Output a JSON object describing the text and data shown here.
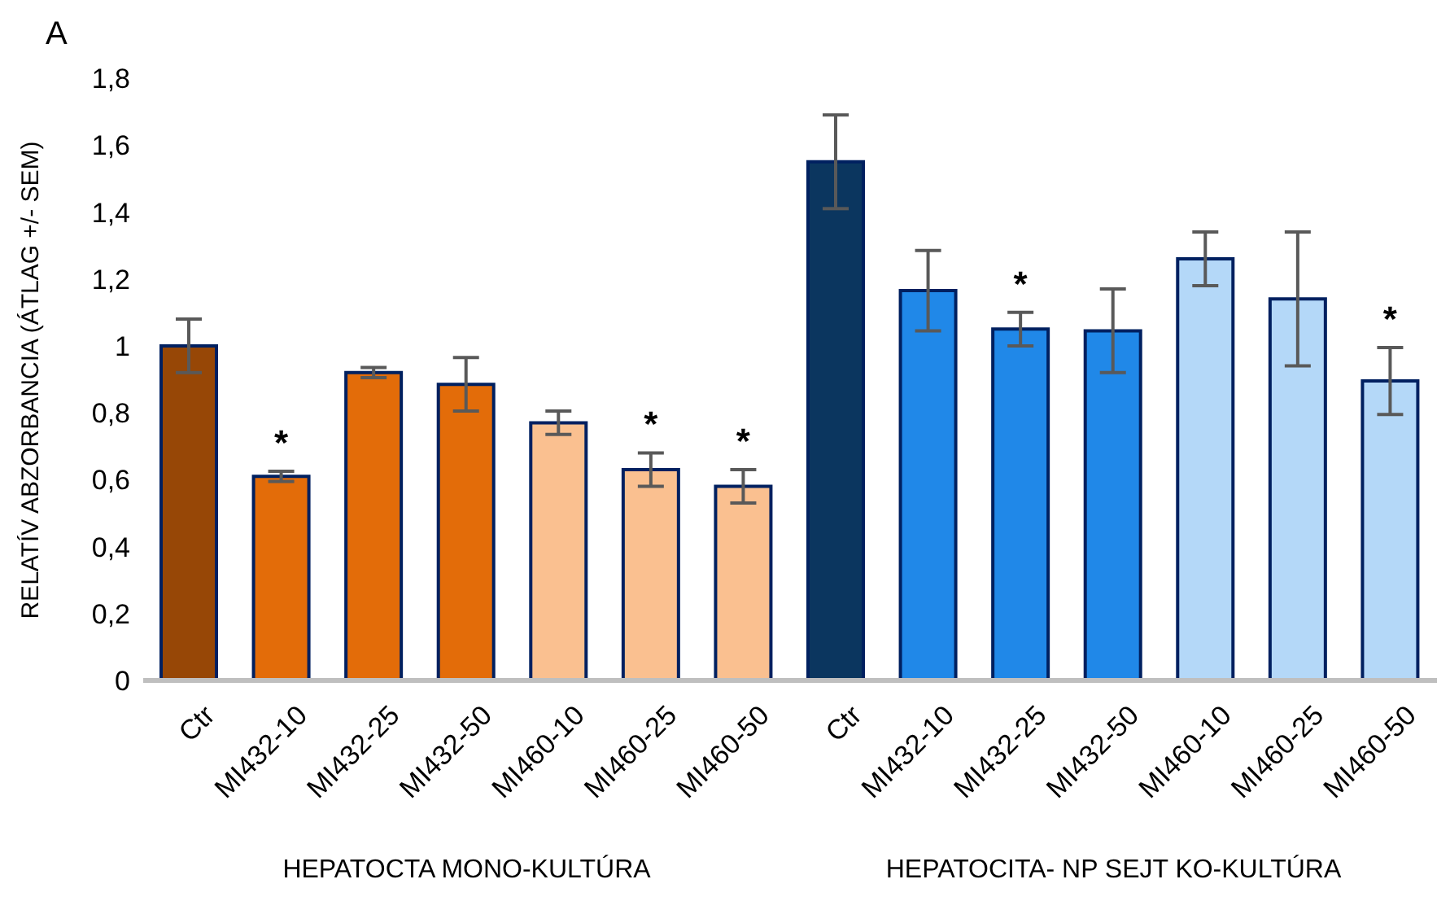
{
  "chart_data": {
    "type": "bar",
    "title": "A",
    "ylabel": "RELATÍV ABZORBANCIA  (ÁTLAG +/- SEM)",
    "categories": [
      "Ctr",
      "MI432-10",
      "MI432-25",
      "MI432-50",
      "MI460-10",
      "MI460-25",
      "MI460-50",
      "Ctr",
      "MI432-10",
      "MI432-25",
      "MI432-50",
      "MI460-10",
      "MI460-25",
      "MI460-50"
    ],
    "values": [
      1.0,
      0.61,
      0.92,
      0.885,
      0.77,
      0.63,
      0.58,
      1.55,
      1.165,
      1.05,
      1.045,
      1.26,
      1.14,
      0.895
    ],
    "errors": [
      0.08,
      0.015,
      0.015,
      0.08,
      0.035,
      0.05,
      0.05,
      0.14,
      0.12,
      0.05,
      0.125,
      0.08,
      0.2,
      0.1
    ],
    "colors": [
      "#974706",
      "#e36c09",
      "#e36c09",
      "#e36c09",
      "#fac090",
      "#fac090",
      "#fac090",
      "#0b365f",
      "#2088e8",
      "#2088e8",
      "#2088e8",
      "#b4d8f8",
      "#b4d8f8",
      "#b4d8f8"
    ],
    "value_labels": [
      null,
      "*",
      null,
      null,
      null,
      "*",
      "*",
      null,
      null,
      "*",
      null,
      null,
      null,
      "*"
    ],
    "ylim": [
      0,
      1.8
    ],
    "yticks": [
      {
        "value": 0,
        "label": "0"
      },
      {
        "value": 0.2,
        "label": "0,2"
      },
      {
        "value": 0.4,
        "label": "0,4"
      },
      {
        "value": 0.6,
        "label": "0,6"
      },
      {
        "value": 0.8,
        "label": "0,8"
      },
      {
        "value": 1,
        "label": "1"
      },
      {
        "value": 1.2,
        "label": "1,2"
      },
      {
        "value": 1.4,
        "label": "1,4"
      },
      {
        "value": 1.6,
        "label": "1,6"
      },
      {
        "value": 1.8,
        "label": "1,8"
      }
    ],
    "grid": false,
    "legend": false,
    "annotations": [
      "HEPATOCTA MONO-KULTÚRA",
      "HEPATOCITA- NP SEJT KO-KULTÚRA"
    ]
  }
}
